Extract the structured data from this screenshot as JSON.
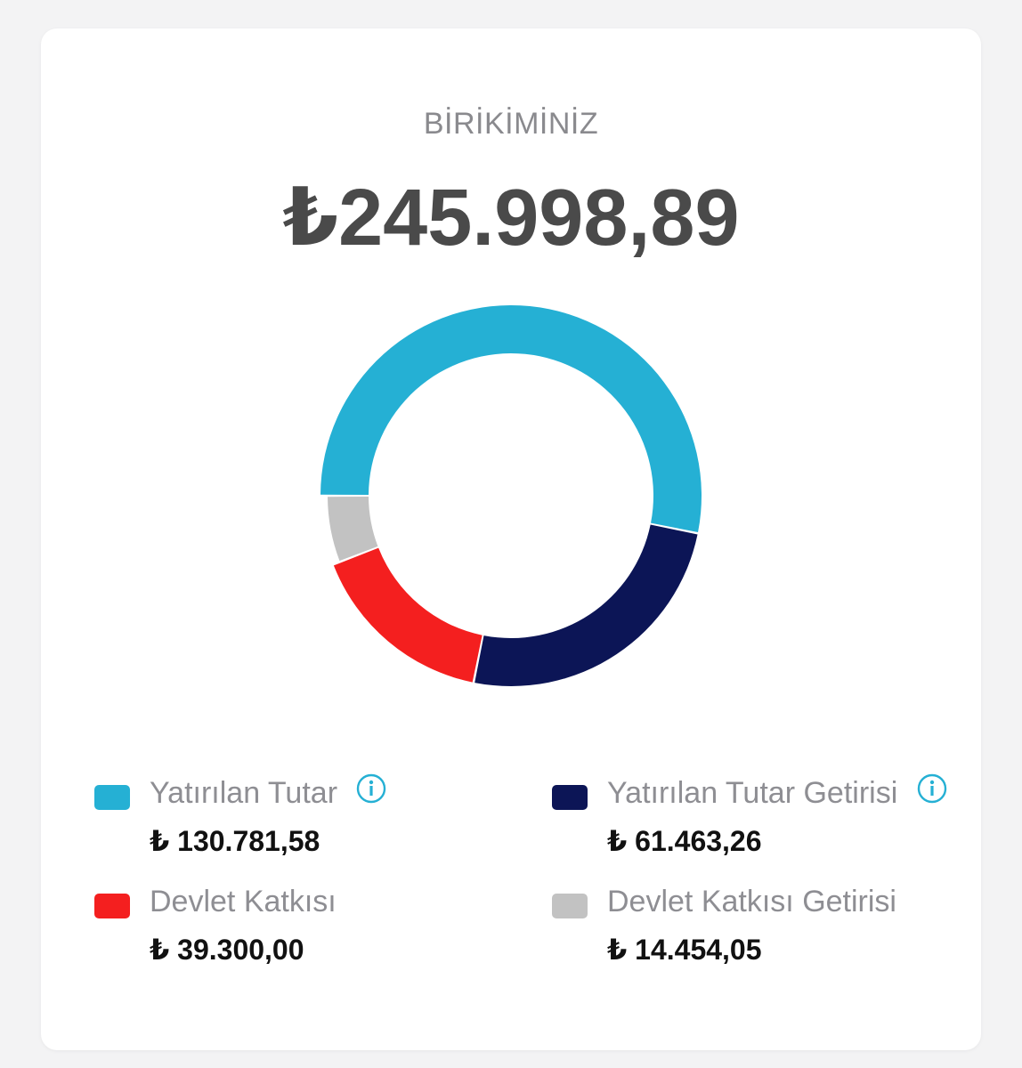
{
  "header": {
    "title": "BİRİKİMİNİZ",
    "total": "₺245.998,89"
  },
  "chart_data": {
    "type": "pie",
    "categories": [
      "Yatırılan Tutar",
      "Yatırılan Tutar Getirisi",
      "Devlet Katkısı",
      "Devlet Katkısı Getirisi"
    ],
    "values": [
      130781.58,
      61463.26,
      39300.0,
      14454.05
    ],
    "colors": [
      "#25b0d4",
      "#0c1556",
      "#f41f1f",
      "#c2c2c2"
    ]
  },
  "legend": [
    {
      "label": "Yatırılan Tutar",
      "value": "₺ 130.781,58",
      "color": "#25b0d4",
      "icon": "info-icon"
    },
    {
      "label": "Yatırılan Tutar Getirisi",
      "value": "₺ 61.463,26",
      "color": "#0c1556",
      "icon": "info-icon"
    },
    {
      "label": "Devlet Katkısı",
      "value": "₺ 39.300,00",
      "color": "#f41f1f"
    },
    {
      "label": "Devlet Katkısı Getirisi",
      "value": "₺ 14.454,05",
      "color": "#c2c2c2"
    }
  ],
  "colors": {
    "accent": "#25b0d4",
    "title": "#8a8a8e",
    "total": "#4a4a4a"
  }
}
